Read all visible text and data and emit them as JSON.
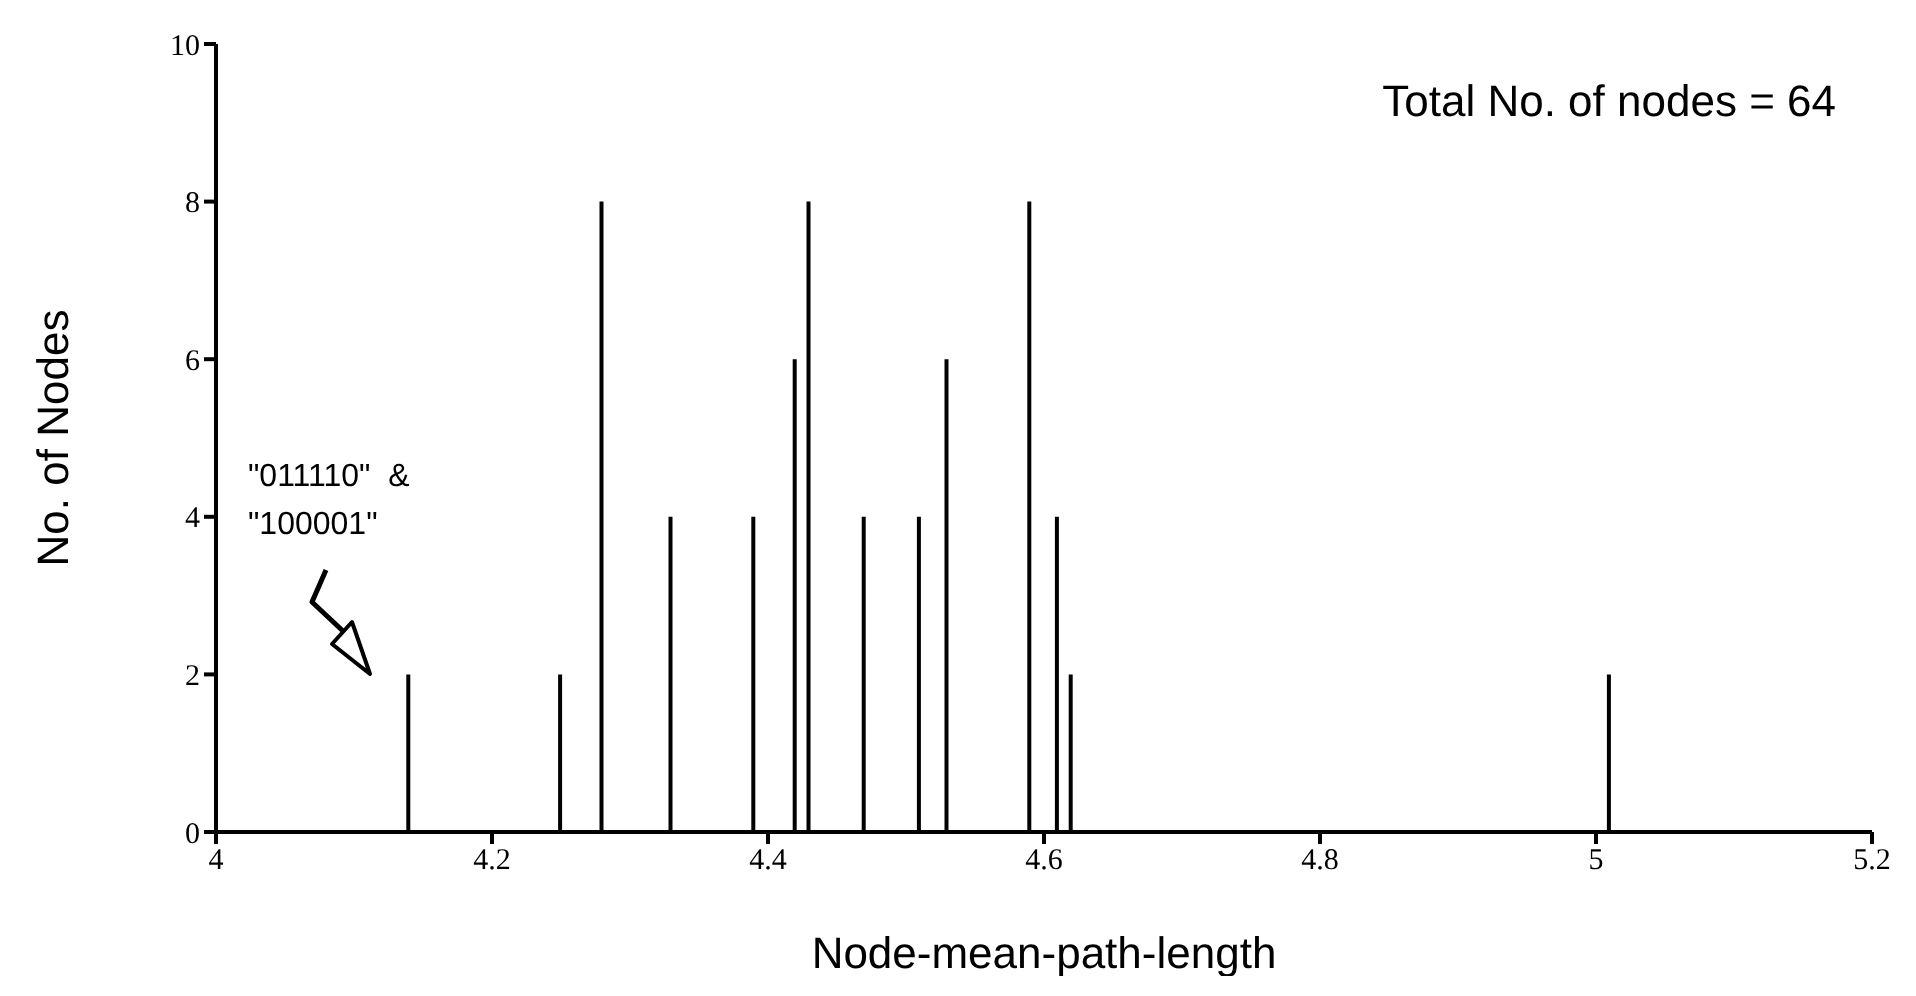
{
  "chart_data": {
    "type": "bar",
    "xlabel": "Node-mean-path-length",
    "ylabel": "No. of Nodes",
    "x": [
      4.14,
      4.25,
      4.28,
      4.33,
      4.39,
      4.42,
      4.43,
      4.47,
      4.51,
      4.53,
      4.59,
      4.61,
      4.62,
      5.01
    ],
    "values": [
      2,
      2,
      8,
      4,
      4,
      6,
      8,
      4,
      4,
      6,
      8,
      4,
      2,
      2
    ],
    "color": "#000000",
    "xlim": [
      4,
      5.2
    ],
    "xticks": [
      4,
      4.2,
      4.4,
      4.6,
      4.8,
      5,
      5.2
    ],
    "ylim": [
      0,
      10
    ],
    "yticks": [
      0,
      2,
      4,
      6,
      8,
      10
    ],
    "grid": false,
    "legend": false,
    "annotations": [
      "Total No. of nodes = 64",
      "\"011110\"  &\n\"100001\""
    ]
  }
}
